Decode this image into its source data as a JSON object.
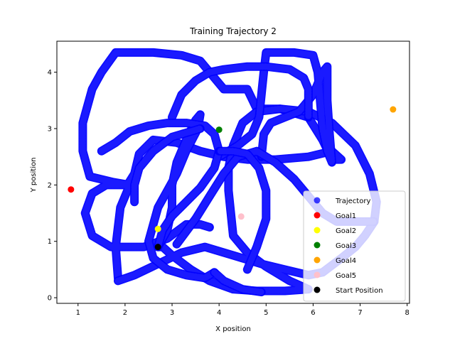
{
  "chart_data": {
    "type": "scatter",
    "title": "Training Trajectory 2",
    "xlabel": "X position",
    "ylabel": "Y position",
    "xlim": [
      0.55,
      8.05
    ],
    "ylim": [
      -0.1,
      4.55
    ],
    "xticks": [
      1,
      2,
      3,
      4,
      5,
      6,
      7,
      8
    ],
    "yticks": [
      0,
      1,
      2,
      3,
      4
    ],
    "grid": false,
    "legend_position": "lower-right",
    "series": [
      {
        "name": "Trajectory",
        "color": "#0000ff",
        "marker": "circle-trail",
        "paths": [
          [
            [
              1.85,
              0.35
            ],
            [
              1.8,
              0.9
            ],
            [
              1.9,
              1.6
            ],
            [
              2.1,
              2.0
            ],
            [
              1.75,
              2.05
            ],
            [
              1.25,
              2.15
            ],
            [
              1.1,
              2.6
            ],
            [
              1.1,
              3.1
            ],
            [
              1.3,
              3.7
            ],
            [
              1.5,
              4.0
            ],
            [
              1.8,
              4.35
            ],
            [
              2.6,
              4.35
            ],
            [
              3.2,
              4.3
            ],
            [
              3.6,
              4.2
            ],
            [
              3.9,
              3.9
            ],
            [
              4.1,
              3.7
            ],
            [
              4.6,
              3.7
            ],
            [
              4.8,
              3.35
            ],
            [
              5.3,
              3.35
            ],
            [
              5.9,
              3.2
            ],
            [
              6.2,
              2.8
            ],
            [
              6.4,
              2.45
            ],
            [
              6.6,
              2.45
            ],
            [
              6.4,
              2.6
            ],
            [
              5.9,
              2.5
            ],
            [
              5.2,
              2.45
            ],
            [
              4.6,
              2.45
            ],
            [
              4.1,
              2.5
            ],
            [
              3.6,
              2.6
            ],
            [
              3.1,
              2.75
            ],
            [
              2.6,
              2.8
            ],
            [
              2.3,
              2.55
            ],
            [
              2.2,
              2.2
            ],
            [
              2.05,
              2.0
            ],
            [
              1.6,
              2.0
            ],
            [
              1.3,
              1.85
            ],
            [
              1.15,
              1.5
            ],
            [
              1.3,
              1.1
            ],
            [
              1.7,
              0.9
            ],
            [
              2.4,
              0.9
            ],
            [
              2.9,
              1.05
            ],
            [
              3.3,
              1.3
            ],
            [
              3.6,
              1.3
            ],
            [
              3.8,
              1.25
            ]
          ],
          [
            [
              1.85,
              0.3
            ],
            [
              2.2,
              0.4
            ],
            [
              2.7,
              0.6
            ],
            [
              3.2,
              0.8
            ],
            [
              3.7,
              0.9
            ],
            [
              4.3,
              0.75
            ],
            [
              4.9,
              0.6
            ],
            [
              5.4,
              0.5
            ],
            [
              5.9,
              0.4
            ],
            [
              6.2,
              0.45
            ],
            [
              6.6,
              0.7
            ],
            [
              6.9,
              0.9
            ],
            [
              7.1,
              1.1
            ],
            [
              7.3,
              1.35
            ],
            [
              7.35,
              1.7
            ],
            [
              7.2,
              2.2
            ],
            [
              6.9,
              2.7
            ],
            [
              6.4,
              3.1
            ],
            [
              5.9,
              3.3
            ],
            [
              5.3,
              3.35
            ],
            [
              4.8,
              3.3
            ],
            [
              4.5,
              3.1
            ],
            [
              4.3,
              2.7
            ],
            [
              4.2,
              2.3
            ],
            [
              4.2,
              1.9
            ],
            [
              4.25,
              1.5
            ],
            [
              4.3,
              1.1
            ],
            [
              4.6,
              0.8
            ],
            [
              5.0,
              0.55
            ],
            [
              5.5,
              0.3
            ],
            [
              5.9,
              0.15
            ],
            [
              5.4,
              0.12
            ],
            [
              4.8,
              0.12
            ],
            [
              4.3,
              0.15
            ],
            [
              3.8,
              0.3
            ],
            [
              3.4,
              0.5
            ],
            [
              3.0,
              0.75
            ],
            [
              2.8,
              0.9
            ],
            [
              2.7,
              0.9
            ]
          ],
          [
            [
              2.7,
              0.9
            ],
            [
              2.9,
              1.2
            ],
            [
              3.0,
              1.6
            ],
            [
              3.0,
              2.0
            ],
            [
              3.1,
              2.4
            ],
            [
              3.3,
              2.8
            ],
            [
              3.5,
              3.15
            ],
            [
              3.6,
              3.25
            ],
            [
              3.55,
              3.0
            ],
            [
              3.3,
              2.6
            ],
            [
              3.1,
              2.2
            ],
            [
              2.9,
              1.9
            ],
            [
              2.7,
              1.6
            ],
            [
              2.6,
              1.3
            ],
            [
              2.5,
              1.0
            ],
            [
              2.6,
              0.7
            ],
            [
              2.9,
              0.5
            ],
            [
              3.3,
              0.4
            ],
            [
              3.7,
              0.35
            ],
            [
              3.9,
              0.45
            ]
          ],
          [
            [
              3.9,
              0.45
            ],
            [
              4.1,
              0.3
            ],
            [
              4.5,
              0.15
            ],
            [
              4.9,
              0.1
            ]
          ],
          [
            [
              4.0,
              2.5
            ],
            [
              4.4,
              2.7
            ],
            [
              4.7,
              2.9
            ],
            [
              4.85,
              3.2
            ],
            [
              4.9,
              3.6
            ],
            [
              4.95,
              4.0
            ],
            [
              5.0,
              4.35
            ],
            [
              5.6,
              4.35
            ],
            [
              6.0,
              4.3
            ],
            [
              6.1,
              4.0
            ],
            [
              6.15,
              3.5
            ],
            [
              6.2,
              3.0
            ],
            [
              6.3,
              2.6
            ],
            [
              6.4,
              2.4
            ],
            [
              6.35,
              2.9
            ],
            [
              6.3,
              3.5
            ],
            [
              6.3,
              4.1
            ],
            [
              6.2,
              4.0
            ],
            [
              6.0,
              3.6
            ],
            [
              5.7,
              3.3
            ],
            [
              5.4,
              3.2
            ],
            [
              5.1,
              3.1
            ],
            [
              4.95,
              2.9
            ],
            [
              4.9,
              2.5
            ]
          ],
          [
            [
              3.0,
              3.2
            ],
            [
              3.2,
              3.6
            ],
            [
              3.5,
              3.85
            ],
            [
              3.8,
              4.0
            ],
            [
              4.1,
              4.05
            ],
            [
              4.6,
              4.1
            ],
            [
              5.0,
              4.1
            ],
            [
              5.5,
              4.05
            ],
            [
              5.8,
              3.9
            ],
            [
              5.9,
              3.7
            ],
            [
              5.9,
              3.2
            ]
          ],
          [
            [
              1.5,
              2.6
            ],
            [
              1.8,
              2.75
            ],
            [
              2.1,
              2.95
            ],
            [
              2.5,
              3.05
            ],
            [
              2.9,
              3.1
            ],
            [
              3.3,
              3.1
            ],
            [
              3.7,
              3.05
            ],
            [
              3.9,
              2.9
            ],
            [
              4.0,
              2.6
            ],
            [
              3.9,
              2.3
            ],
            [
              3.6,
              1.95
            ],
            [
              3.3,
              1.7
            ],
            [
              3.0,
              1.45
            ],
            [
              2.8,
              1.2
            ],
            [
              2.7,
              0.9
            ]
          ],
          [
            [
              2.2,
              1.7
            ],
            [
              2.2,
              2.0
            ],
            [
              2.3,
              2.3
            ],
            [
              2.6,
              2.6
            ],
            [
              3.0,
              2.85
            ],
            [
              3.4,
              2.95
            ],
            [
              3.6,
              3.0
            ]
          ],
          [
            [
              3.1,
              0.95
            ],
            [
              3.5,
              1.4
            ],
            [
              3.8,
              1.8
            ],
            [
              4.1,
              2.2
            ],
            [
              4.4,
              2.5
            ],
            [
              4.8,
              2.6
            ],
            [
              5.2,
              2.4
            ],
            [
              5.6,
              2.1
            ],
            [
              5.9,
              1.8
            ],
            [
              6.2,
              1.5
            ],
            [
              6.5,
              1.35
            ],
            [
              6.9,
              1.35
            ],
            [
              7.3,
              1.35
            ]
          ],
          [
            [
              4.6,
              0.5
            ],
            [
              4.8,
              0.9
            ],
            [
              5.0,
              1.4
            ],
            [
              5.0,
              1.9
            ],
            [
              4.85,
              2.3
            ],
            [
              4.6,
              2.55
            ],
            [
              4.3,
              2.6
            ],
            [
              4.0,
              2.6
            ]
          ]
        ]
      }
    ],
    "points": [
      {
        "name": "Goal1",
        "x": 0.85,
        "y": 1.92,
        "color": "#ff0000"
      },
      {
        "name": "Goal2",
        "x": 2.7,
        "y": 1.22,
        "color": "#ffff00"
      },
      {
        "name": "Goal3",
        "x": 4.0,
        "y": 2.98,
        "color": "#008000"
      },
      {
        "name": "Goal4",
        "x": 7.7,
        "y": 3.34,
        "color": "#ffa500"
      },
      {
        "name": "Goal5",
        "x": 4.47,
        "y": 1.44,
        "color": "#ffc0cb"
      },
      {
        "name": "Start Position",
        "x": 2.7,
        "y": 0.9,
        "color": "#000000"
      }
    ],
    "legend": [
      {
        "label": "Trajectory",
        "color": "#0000ff"
      },
      {
        "label": "Goal1",
        "color": "#ff0000"
      },
      {
        "label": "Goal2",
        "color": "#ffff00"
      },
      {
        "label": "Goal3",
        "color": "#008000"
      },
      {
        "label": "Goal4",
        "color": "#ffa500"
      },
      {
        "label": "Goal5",
        "color": "#ffc0cb"
      },
      {
        "label": "Start Position",
        "color": "#000000"
      }
    ]
  }
}
